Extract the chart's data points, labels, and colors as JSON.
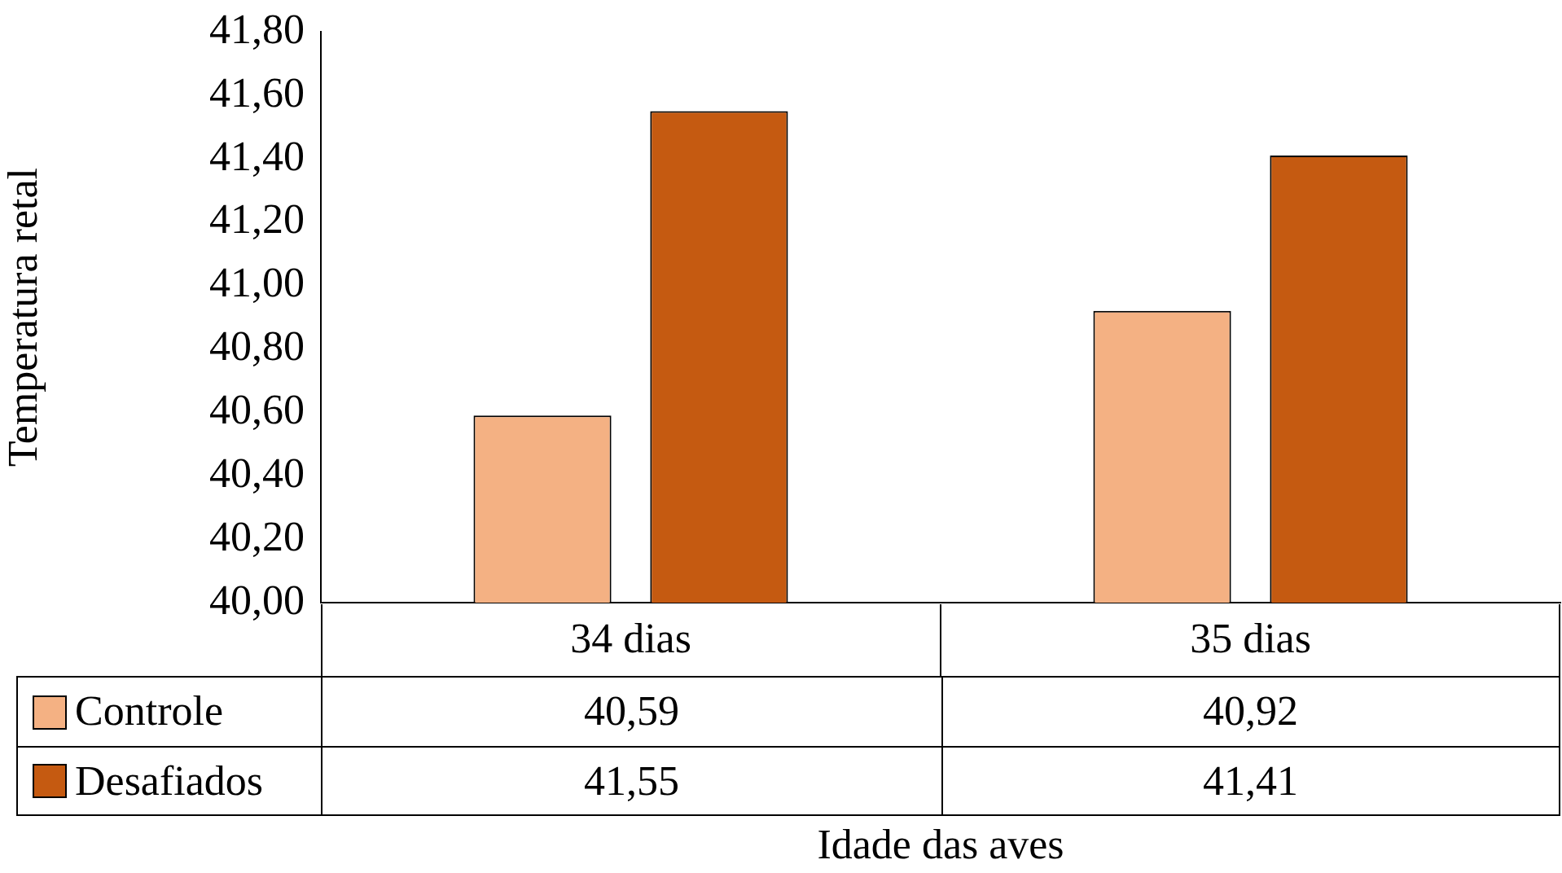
{
  "chart_data": {
    "type": "bar",
    "xlabel": "Idade das aves",
    "ylabel": "Temperatura retal",
    "categories": [
      "34 dias",
      "35 dias"
    ],
    "series": [
      {
        "name": "Controle",
        "color": "#f4b183",
        "values": [
          40.59,
          40.92
        ],
        "value_labels": [
          "40,59",
          "40,92"
        ]
      },
      {
        "name": "Desafiados",
        "color": "#c55a11",
        "values": [
          41.55,
          41.41
        ],
        "value_labels": [
          "41,55",
          "41,41"
        ]
      }
    ],
    "ylim": [
      40,
      41.8
    ],
    "yticks": [
      {
        "value": 40,
        "label": "40,00"
      },
      {
        "value": 40.2,
        "label": "40,20"
      },
      {
        "value": 40.4,
        "label": "40,40"
      },
      {
        "value": 40.6,
        "label": "40,60"
      },
      {
        "value": 40.8,
        "label": "40,80"
      },
      {
        "value": 41,
        "label": "41,00"
      },
      {
        "value": 41.2,
        "label": "41,20"
      },
      {
        "value": 41.4,
        "label": "41,40"
      },
      {
        "value": 41.6,
        "label": "41,60"
      },
      {
        "value": 41.8,
        "label": "41,80"
      }
    ],
    "grid": false,
    "legend": "bottom left"
  }
}
